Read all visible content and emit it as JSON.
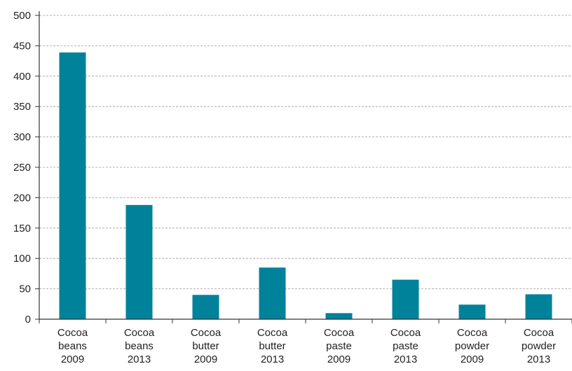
{
  "chart_data": {
    "type": "bar",
    "title": "",
    "xlabel": "",
    "ylabel": "",
    "ylim": [
      0,
      500
    ],
    "yticks": [
      "0",
      "50",
      "100",
      "150",
      "200",
      "250",
      "300",
      "350",
      "400",
      "450",
      "500"
    ],
    "grid": "horizontal dashed",
    "legend": "none",
    "bar_color": "#00829a",
    "categories": [
      [
        "Cocoa",
        "beans",
        "2009"
      ],
      [
        "Cocoa",
        "beans",
        "2013"
      ],
      [
        "Cocoa",
        "butter",
        "2009"
      ],
      [
        "Cocoa",
        "butter",
        "2013"
      ],
      [
        "Cocoa",
        "paste",
        "2009"
      ],
      [
        "Cocoa",
        "paste",
        "2013"
      ],
      [
        "Cocoa",
        "powder",
        "2009"
      ],
      [
        "Cocoa",
        "powder",
        "2013"
      ]
    ],
    "values": [
      439,
      188,
      40,
      85,
      10,
      65,
      24,
      41
    ]
  }
}
